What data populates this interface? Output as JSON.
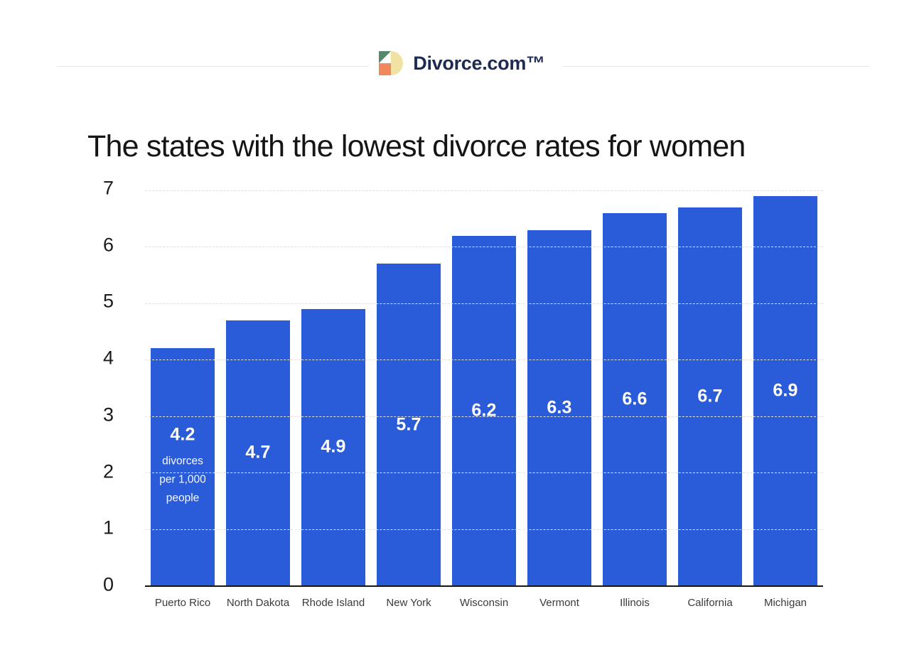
{
  "header": {
    "brand": "Divorce.com™",
    "logo_icon": "quadrant-logo",
    "logo_colors": {
      "green": "#57886c",
      "orange": "#f0875d",
      "yellow": "#f0e2a2",
      "navy": "#1d2b50"
    }
  },
  "title": "The states with the lowest divorce rates for women",
  "chart_data": {
    "type": "bar",
    "title": "The states with the lowest divorce rates for women",
    "categories": [
      "Puerto Rico",
      "North Dakota",
      "Rhode Island",
      "New York",
      "Wisconsin",
      "Vermont",
      "Illinois",
      "California",
      "Michigan"
    ],
    "values": [
      4.2,
      4.7,
      4.9,
      5.7,
      6.2,
      6.3,
      6.6,
      6.7,
      6.9
    ],
    "bar_labels": [
      "4.2",
      "4.7",
      "4.9",
      "5.7",
      "6.2",
      "6.3",
      "6.6",
      "6.7",
      "6.9"
    ],
    "unit_annotation": {
      "bar_index": 0,
      "lines": [
        "divorces",
        "per 1,000",
        "people"
      ]
    },
    "xlabel": "",
    "ylabel": "",
    "ylim": [
      0,
      7
    ],
    "yticks": [
      0,
      1,
      2,
      3,
      4,
      5,
      6,
      7
    ],
    "grid": "horizontal-dashed",
    "legend": "none",
    "bar_color": "#2a5bd8",
    "value_label_color": "#ffffff",
    "axis_line_color": "#161616"
  }
}
